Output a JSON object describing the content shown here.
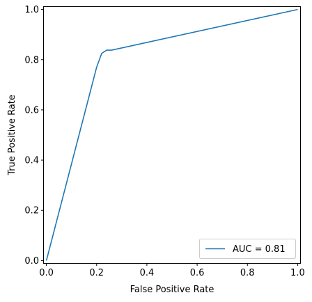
{
  "chart_data": {
    "type": "line",
    "title": "",
    "xlabel": "False Positive Rate",
    "ylabel": "True Positive Rate",
    "xlim": [
      -0.01,
      1.01
    ],
    "ylim": [
      -0.01,
      1.01
    ],
    "xticks": [
      0.0,
      0.2,
      0.4,
      0.6,
      0.8,
      1.0
    ],
    "yticks": [
      0.0,
      0.2,
      0.4,
      0.6,
      0.8,
      1.0
    ],
    "xtick_labels": [
      "0.0",
      "0.2",
      "0.4",
      "0.6",
      "0.8",
      "1.0"
    ],
    "ytick_labels": [
      "0.0",
      "0.2",
      "0.4",
      "0.6",
      "0.8",
      "1.0"
    ],
    "grid": false,
    "legend_position": "lower-right",
    "series": [
      {
        "name": "AUC = 0.81",
        "color": "#1f77b4",
        "x": [
          0.0,
          0.2,
          0.22,
          0.24,
          0.26,
          1.0
        ],
        "y": [
          0.0,
          0.77,
          0.825,
          0.838,
          0.838,
          1.0
        ]
      }
    ]
  }
}
